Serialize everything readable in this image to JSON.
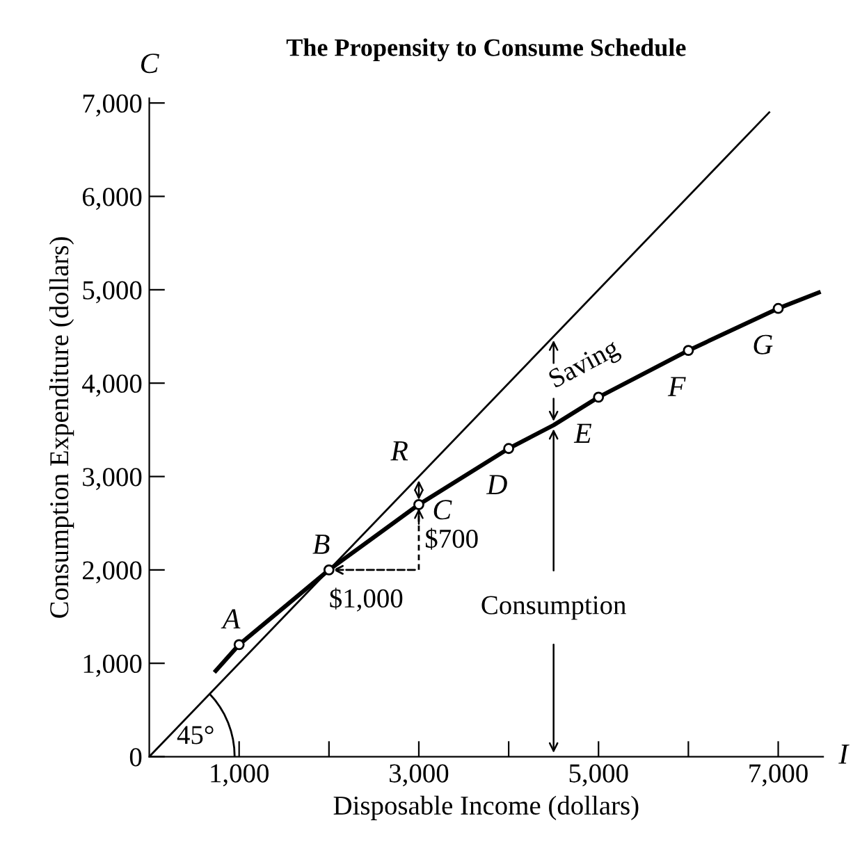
{
  "chart_data": {
    "type": "line",
    "title": "The Propensity to Consume Schedule",
    "xlabel": "Disposable Income (dollars)",
    "ylabel": "Consumption Expenditure (dollars)",
    "series": [
      {
        "color": "#000000",
        "x": [
          740,
          1000,
          2000,
          3000,
          4000,
          4500,
          5000,
          6000,
          7000,
          7450
        ],
        "values": [
          920,
          1200,
          2000,
          2700,
          3300,
          3550,
          3850,
          4350,
          4800,
          4970
        ]
      },
      {
        "color": "#000000",
        "x": [
          0,
          6900
        ],
        "values": [
          0,
          6900
        ]
      },
      {
        "type": "scatter",
        "marker": "circle",
        "color": "#000000",
        "x": [
          1000,
          2000,
          3000,
          4000,
          5000,
          6000,
          7000
        ],
        "values": [
          1200,
          2000,
          2700,
          3300,
          3850,
          4350,
          4800
        ]
      }
    ],
    "xlim": [
      0,
      7500
    ],
    "ylim": [
      0,
      7050
    ],
    "xticks": [
      {
        "value": 1000,
        "label": "1,000"
      },
      {
        "value": 2000,
        "label": null
      },
      {
        "value": 3000,
        "label": "3,000"
      },
      {
        "value": 4000,
        "label": null
      },
      {
        "value": 5000,
        "label": "5,000"
      },
      {
        "value": 6000,
        "label": null
      },
      {
        "value": 7000,
        "label": "7,000"
      }
    ],
    "yticks": [
      {
        "value": 0,
        "label": "0"
      },
      {
        "value": 1000,
        "label": "1,000"
      },
      {
        "value": 2000,
        "label": "2,000"
      },
      {
        "value": 3000,
        "label": "3,000"
      },
      {
        "value": 4000,
        "label": "4,000"
      },
      {
        "value": 5000,
        "label": "5,000"
      },
      {
        "value": 6000,
        "label": "6,000"
      },
      {
        "value": 7000,
        "label": "7,000"
      }
    ],
    "annotations": [
      "C",
      "I",
      "$700",
      "Saving",
      {
        "text": "A",
        "x": 1000,
        "y": 1200
      },
      {
        "text": "B",
        "x": 2000,
        "y": 2000
      },
      {
        "text": "C",
        "x": 3000,
        "y": 2700
      },
      {
        "text": "D",
        "x": 4000,
        "y": 3300
      },
      {
        "text": "E",
        "x": 5000,
        "y": 3850
      },
      {
        "text": "F",
        "x": 6000,
        "y": 4350
      },
      {
        "text": "G",
        "x": 7000,
        "y": 4800
      },
      {
        "text": "R",
        "x": 3000,
        "y": 3000
      },
      {
        "text": "$1,000",
        "x": 2000,
        "y": 2000
      },
      {
        "text": "Consumption",
        "x": 4500,
        "y": 3550
      },
      {
        "text": "45°",
        "x": 0,
        "y": 0
      }
    ],
    "grid": false
  }
}
